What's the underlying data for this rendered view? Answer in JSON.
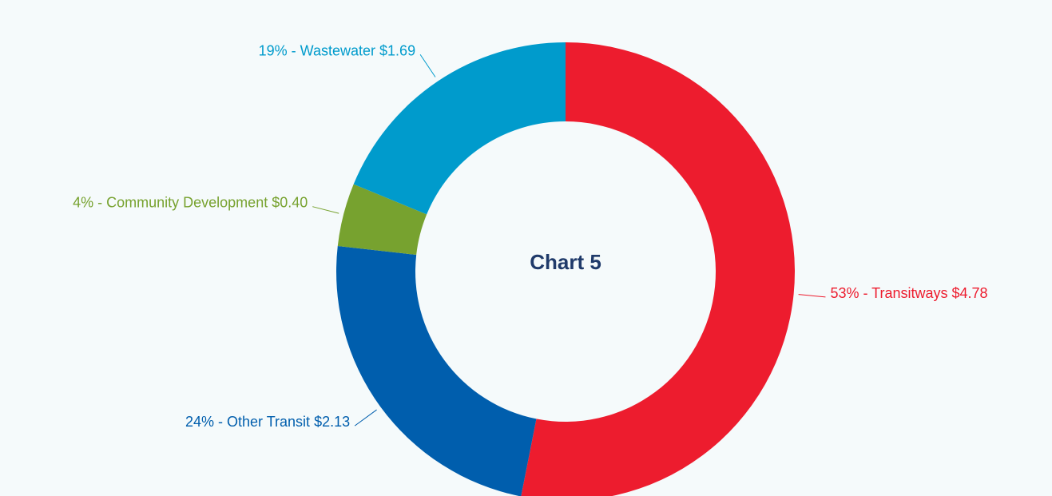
{
  "chart_data": {
    "type": "pie",
    "hole": true,
    "center_label": "Chart 5",
    "categories": [
      "Transitways",
      "Other Transit",
      "Community Development",
      "Wastewater"
    ],
    "values": [
      4.78,
      2.13,
      0.4,
      1.69
    ],
    "value_labels": [
      "$4.78",
      "$2.13",
      "$0.40",
      "$1.69"
    ],
    "shares": [
      53,
      24,
      4,
      19
    ],
    "share_labels": [
      "53%",
      "24%",
      "4%",
      "19%"
    ],
    "separator": " - ",
    "colors": [
      "#ed1c2e",
      "#005ead",
      "#77a22f",
      "#009bcc"
    ]
  }
}
